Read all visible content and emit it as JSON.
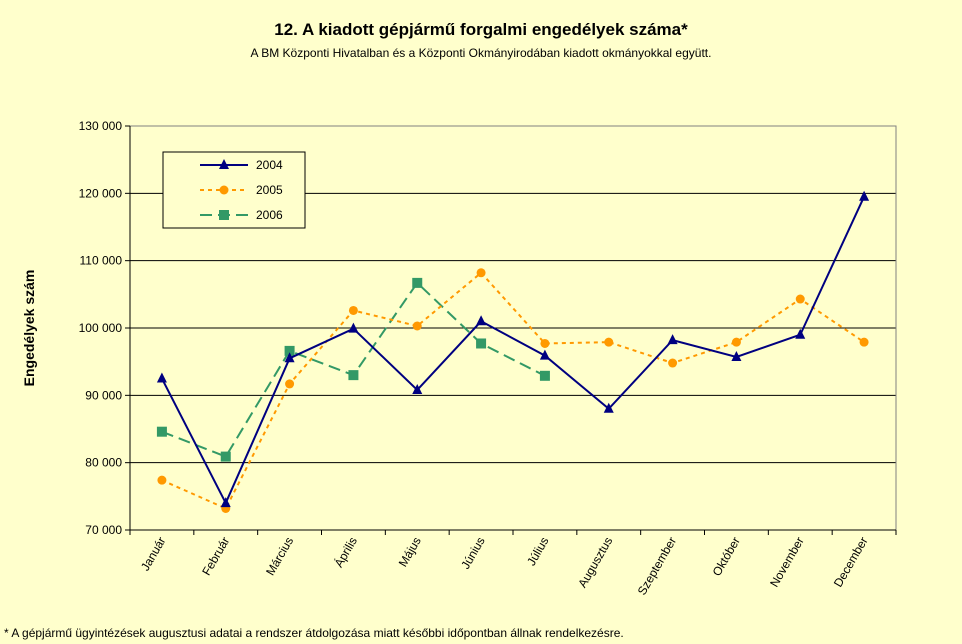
{
  "chart_data": {
    "type": "line",
    "title": "12. A  kiadott gépjármű forgalmi engedélyek száma*",
    "subtitle": "A BM Központi Hivatalban és a Központi Okmányirodában kiadott okmányokkal együtt.",
    "xlabel": "",
    "ylabel": "Engedélyek szám",
    "ylim": [
      70000,
      130000
    ],
    "yticks": [
      70000,
      80000,
      90000,
      100000,
      110000,
      120000,
      130000
    ],
    "ytick_labels": [
      "70 000",
      "80 000",
      "90 000",
      "100 000",
      "110 000",
      "120 000",
      "130 000"
    ],
    "grid": true,
    "legend_position": "top-left",
    "categories": [
      "Január",
      "Február",
      "Március",
      "Április",
      "Május",
      "Június",
      "Július",
      "Augusztus",
      "Szeptember",
      "Október",
      "November",
      "December"
    ],
    "series": [
      {
        "name": "2004",
        "color": "#000080",
        "style": "solid",
        "marker": "triangle",
        "values": [
          92500,
          74000,
          95500,
          99900,
          90800,
          101000,
          95900,
          88000,
          98200,
          95700,
          99000,
          119500
        ]
      },
      {
        "name": "2005",
        "color": "#ff9900",
        "style": "dotted",
        "marker": "circle",
        "values": [
          77400,
          73200,
          91700,
          102600,
          100300,
          108200,
          97700,
          97900,
          94800,
          97900,
          104300,
          97900
        ]
      },
      {
        "name": "2006",
        "color": "#339966",
        "style": "dashed",
        "marker": "square",
        "values": [
          84600,
          80900,
          96600,
          93000,
          106700,
          97700,
          92900,
          null,
          null,
          null,
          null,
          null
        ]
      }
    ]
  },
  "footnote": "* A gépjármű ügyintézések augusztusi adatai a rendszer átdolgozása miatt későbbi időpontban állnak rendelkezésre.",
  "colors": {
    "background": "#ffffcc",
    "plot_background": "#ffffcc"
  }
}
